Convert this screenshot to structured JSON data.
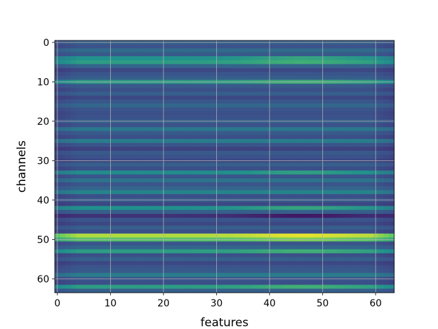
{
  "chart_data": {
    "type": "heatmap",
    "title": "",
    "xlabel": "features",
    "ylabel": "channels",
    "n_rows": 64,
    "n_cols": 64,
    "x_ticks": [
      "0",
      "10",
      "20",
      "30",
      "40",
      "50",
      "60"
    ],
    "y_ticks": [
      "0",
      "10",
      "20",
      "30",
      "40",
      "50",
      "60"
    ],
    "grid": true,
    "colormap": "viridis",
    "value_range": [
      0,
      1
    ],
    "row_values": [
      0.3,
      0.25,
      0.35,
      0.28,
      0.5,
      0.55,
      0.32,
      0.22,
      0.26,
      0.3,
      0.55,
      0.28,
      0.24,
      0.3,
      0.22,
      0.27,
      0.33,
      0.26,
      0.24,
      0.25,
      0.3,
      0.25,
      0.4,
      0.28,
      0.24,
      0.42,
      0.26,
      0.2,
      0.28,
      0.25,
      0.22,
      0.3,
      0.24,
      0.48,
      0.26,
      0.38,
      0.26,
      0.32,
      0.45,
      0.24,
      0.28,
      0.22,
      0.5,
      0.3,
      0.15,
      0.26,
      0.22,
      0.3,
      0.24,
      0.88,
      0.72,
      0.26,
      0.32,
      0.55,
      0.24,
      0.3,
      0.22,
      0.26,
      0.28,
      0.42,
      0.26,
      0.24,
      0.55,
      0.3
    ],
    "column_profile": {
      "edge_left_scale": 0.85,
      "edge_right_scale": 0.85,
      "peak_feature": 46,
      "peak_boost": 0.08
    }
  }
}
